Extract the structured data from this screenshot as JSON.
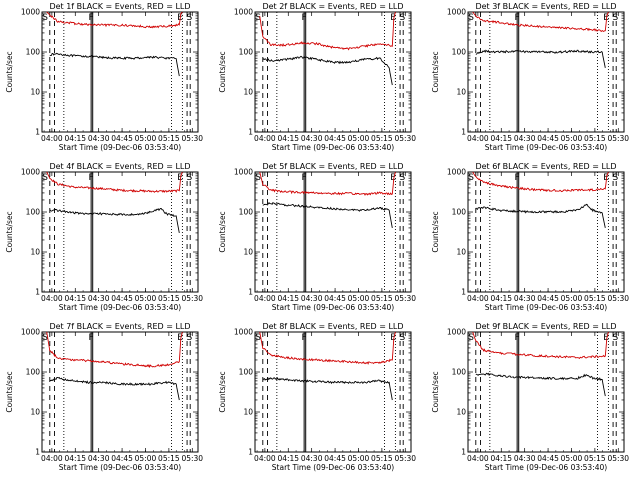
{
  "shared": {
    "subtitle_prefix": "BLACK = Events, RED = LLD",
    "xlabel": "Start Time (09-Dec-06 03:53:40)",
    "ylabel": "Counts/sec",
    "x_tick_labels": [
      "04:00",
      "04:15",
      "04:30",
      "04:45",
      "05:00",
      "05:15",
      "05:30"
    ],
    "y_tick_labels": [
      "1",
      "10",
      "100",
      "1000"
    ],
    "markers": [
      "S",
      "F",
      "E",
      "S"
    ],
    "colors": {
      "events": "#000000",
      "lld": "#d00000"
    }
  },
  "chart_data": [
    {
      "type": "line",
      "title": "Det 1f BLACK = Events, RED = LLD",
      "x_tick_minutes": [
        6.33,
        21.33,
        36.33,
        51.33,
        66.33,
        81.33,
        96.33
      ],
      "xlim": [
        0,
        100
      ],
      "yscale": "log",
      "ylim": [
        1,
        1000
      ],
      "series": [
        {
          "x": [
            5,
            10,
            20,
            30,
            40,
            50,
            60,
            70,
            80,
            86,
            88
          ],
          "values": [
            85,
            90,
            80,
            78,
            72,
            70,
            70,
            75,
            70,
            68,
            25
          ]
        },
        {
          "x": [
            3,
            5,
            10,
            20,
            30,
            40,
            50,
            60,
            70,
            80,
            88,
            89,
            90
          ],
          "values": [
            1000,
            850,
            580,
            520,
            480,
            470,
            470,
            450,
            420,
            440,
            480,
            900,
            1000
          ]
        }
      ],
      "vertical_lines": {
        "dashed": [
          5,
          8,
          93,
          95
        ],
        "dotted": [
          14,
          83,
          90
        ],
        "solid": [
          31.5,
          32.5
        ]
      }
    },
    {
      "type": "line",
      "title": "Det 2f BLACK = Events, RED = LLD",
      "x_tick_minutes": [
        6.33,
        21.33,
        36.33,
        51.33,
        66.33,
        81.33,
        96.33
      ],
      "xlim": [
        0,
        100
      ],
      "yscale": "log",
      "ylim": [
        1,
        1000
      ],
      "series": [
        {
          "x": [
            5,
            10,
            20,
            30,
            40,
            50,
            60,
            70,
            80,
            86,
            88
          ],
          "values": [
            70,
            60,
            65,
            75,
            65,
            55,
            55,
            65,
            70,
            40,
            15
          ]
        },
        {
          "x": [
            3,
            5,
            10,
            20,
            30,
            40,
            50,
            60,
            70,
            80,
            85,
            88,
            89,
            90
          ],
          "values": [
            800,
            250,
            150,
            150,
            170,
            160,
            130,
            120,
            140,
            160,
            150,
            140,
            700,
            1000
          ]
        }
      ],
      "vertical_lines": {
        "dashed": [
          5,
          8,
          93,
          95
        ],
        "dotted": [
          14,
          83,
          90
        ],
        "solid": [
          31.5,
          32.5
        ]
      }
    },
    {
      "type": "line",
      "title": "Det 3f BLACK = Events, RED = LLD",
      "x_tick_minutes": [
        6.33,
        21.33,
        36.33,
        51.33,
        66.33,
        81.33,
        96.33
      ],
      "xlim": [
        0,
        100
      ],
      "yscale": "log",
      "ylim": [
        1,
        1000
      ],
      "series": [
        {
          "x": [
            5,
            10,
            20,
            30,
            40,
            50,
            60,
            70,
            80,
            86,
            88
          ],
          "values": [
            90,
            105,
            100,
            105,
            100,
            100,
            100,
            105,
            100,
            100,
            40
          ]
        },
        {
          "x": [
            3,
            5,
            10,
            20,
            30,
            40,
            50,
            60,
            70,
            80,
            88,
            89,
            90
          ],
          "values": [
            1000,
            800,
            600,
            550,
            480,
            450,
            420,
            400,
            380,
            360,
            340,
            800,
            1000
          ]
        }
      ],
      "vertical_lines": {
        "dashed": [
          5,
          8,
          93,
          95
        ],
        "dotted": [
          14,
          83,
          90
        ],
        "solid": [
          31.5,
          32.5
        ]
      }
    },
    {
      "type": "line",
      "title": "Det 4f BLACK = Events, RED = LLD",
      "x_tick_minutes": [
        6.33,
        21.33,
        36.33,
        51.33,
        66.33,
        81.33,
        96.33
      ],
      "xlim": [
        0,
        100
      ],
      "yscale": "log",
      "ylim": [
        1,
        1000
      ],
      "series": [
        {
          "x": [
            5,
            10,
            20,
            30,
            40,
            50,
            60,
            70,
            76,
            80,
            86,
            88
          ],
          "values": [
            110,
            110,
            95,
            90,
            90,
            88,
            85,
            100,
            120,
            90,
            80,
            30
          ]
        },
        {
          "x": [
            3,
            5,
            10,
            20,
            30,
            40,
            50,
            60,
            70,
            80,
            88,
            89,
            90
          ],
          "values": [
            1000,
            700,
            500,
            420,
            400,
            380,
            350,
            340,
            330,
            330,
            340,
            800,
            1000
          ]
        }
      ],
      "vertical_lines": {
        "dashed": [
          5,
          8,
          93,
          95
        ],
        "dotted": [
          14,
          83,
          90
        ],
        "solid": [
          31.5,
          32.5
        ]
      }
    },
    {
      "type": "line",
      "title": "Det 5f BLACK = Events, RED = LLD",
      "x_tick_minutes": [
        6.33,
        21.33,
        36.33,
        51.33,
        66.33,
        81.33,
        96.33
      ],
      "xlim": [
        0,
        100
      ],
      "yscale": "log",
      "ylim": [
        1,
        1000
      ],
      "series": [
        {
          "x": [
            5,
            10,
            20,
            30,
            40,
            50,
            60,
            70,
            80,
            86,
            88
          ],
          "values": [
            150,
            165,
            150,
            140,
            130,
            120,
            115,
            110,
            125,
            110,
            40
          ]
        },
        {
          "x": [
            3,
            5,
            10,
            20,
            30,
            40,
            50,
            60,
            70,
            80,
            88,
            89,
            90
          ],
          "values": [
            1000,
            500,
            350,
            320,
            310,
            300,
            290,
            290,
            280,
            300,
            280,
            700,
            1000
          ]
        }
      ],
      "vertical_lines": {
        "dashed": [
          5,
          8,
          93,
          95
        ],
        "dotted": [
          14,
          83,
          90
        ],
        "solid": [
          31.5,
          32.5
        ]
      }
    },
    {
      "type": "line",
      "title": "Det 6f BLACK = Events, RED = LLD",
      "x_tick_minutes": [
        6.33,
        21.33,
        36.33,
        51.33,
        66.33,
        81.33,
        96.33
      ],
      "xlim": [
        0,
        100
      ],
      "yscale": "log",
      "ylim": [
        1,
        1000
      ],
      "series": [
        {
          "x": [
            5,
            10,
            20,
            30,
            40,
            50,
            60,
            70,
            76,
            80,
            86,
            88
          ],
          "values": [
            120,
            130,
            110,
            105,
            100,
            100,
            100,
            110,
            150,
            110,
            95,
            40
          ]
        },
        {
          "x": [
            3,
            5,
            10,
            20,
            30,
            40,
            50,
            60,
            70,
            80,
            88,
            89,
            90
          ],
          "values": [
            1000,
            750,
            550,
            450,
            400,
            370,
            350,
            340,
            350,
            360,
            380,
            800,
            1000
          ]
        }
      ],
      "vertical_lines": {
        "dashed": [
          5,
          8,
          93,
          95
        ],
        "dotted": [
          14,
          83,
          90
        ],
        "solid": [
          31.5,
          32.5
        ]
      }
    },
    {
      "type": "line",
      "title": "Det 7f BLACK = Events, RED = LLD",
      "x_tick_minutes": [
        6.33,
        21.33,
        36.33,
        51.33,
        66.33,
        81.33,
        96.33
      ],
      "xlim": [
        0,
        100
      ],
      "yscale": "log",
      "ylim": [
        1,
        1000
      ],
      "series": [
        {
          "x": [
            5,
            10,
            20,
            30,
            40,
            50,
            60,
            70,
            80,
            86,
            88
          ],
          "values": [
            60,
            70,
            60,
            55,
            55,
            50,
            50,
            50,
            55,
            50,
            20
          ]
        },
        {
          "x": [
            3,
            5,
            10,
            20,
            30,
            40,
            50,
            60,
            70,
            80,
            88,
            89,
            90
          ],
          "values": [
            1000,
            350,
            220,
            200,
            190,
            180,
            160,
            150,
            140,
            150,
            180,
            700,
            1000
          ]
        }
      ],
      "vertical_lines": {
        "dashed": [
          5,
          8,
          93,
          95
        ],
        "dotted": [
          14,
          83,
          90
        ],
        "solid": [
          31.5,
          32.5
        ]
      }
    },
    {
      "type": "line",
      "title": "Det 8f BLACK = Events, RED = LLD",
      "x_tick_minutes": [
        6.33,
        21.33,
        36.33,
        51.33,
        66.33,
        81.33,
        96.33
      ],
      "xlim": [
        0,
        100
      ],
      "yscale": "log",
      "ylim": [
        1,
        1000
      ],
      "series": [
        {
          "x": [
            5,
            10,
            20,
            30,
            40,
            50,
            60,
            70,
            80,
            86,
            88
          ],
          "values": [
            65,
            70,
            65,
            60,
            58,
            55,
            55,
            55,
            60,
            55,
            20
          ]
        },
        {
          "x": [
            3,
            5,
            10,
            20,
            30,
            40,
            50,
            60,
            70,
            80,
            88,
            89,
            90
          ],
          "values": [
            1000,
            400,
            260,
            230,
            210,
            200,
            190,
            180,
            170,
            170,
            200,
            700,
            1000
          ]
        }
      ],
      "vertical_lines": {
        "dashed": [
          5,
          8,
          93,
          95
        ],
        "dotted": [
          14,
          83,
          90
        ],
        "solid": [
          31.5,
          32.5
        ]
      }
    },
    {
      "type": "line",
      "title": "Det 9f BLACK = Events, RED = LLD",
      "x_tick_minutes": [
        6.33,
        21.33,
        36.33,
        51.33,
        66.33,
        81.33,
        96.33
      ],
      "xlim": [
        0,
        100
      ],
      "yscale": "log",
      "ylim": [
        1,
        1000
      ],
      "series": [
        {
          "x": [
            5,
            10,
            20,
            30,
            40,
            50,
            60,
            70,
            76,
            80,
            86,
            88
          ],
          "values": [
            85,
            90,
            80,
            75,
            72,
            70,
            68,
            70,
            85,
            70,
            65,
            25
          ]
        },
        {
          "x": [
            3,
            5,
            10,
            20,
            30,
            40,
            50,
            60,
            70,
            80,
            88,
            89,
            90
          ],
          "values": [
            1000,
            600,
            350,
            300,
            280,
            260,
            250,
            240,
            230,
            240,
            250,
            700,
            1000
          ]
        }
      ],
      "vertical_lines": {
        "dashed": [
          5,
          8,
          93,
          95
        ],
        "dotted": [
          14,
          83,
          90
        ],
        "solid": [
          31.5,
          32.5
        ]
      }
    }
  ]
}
